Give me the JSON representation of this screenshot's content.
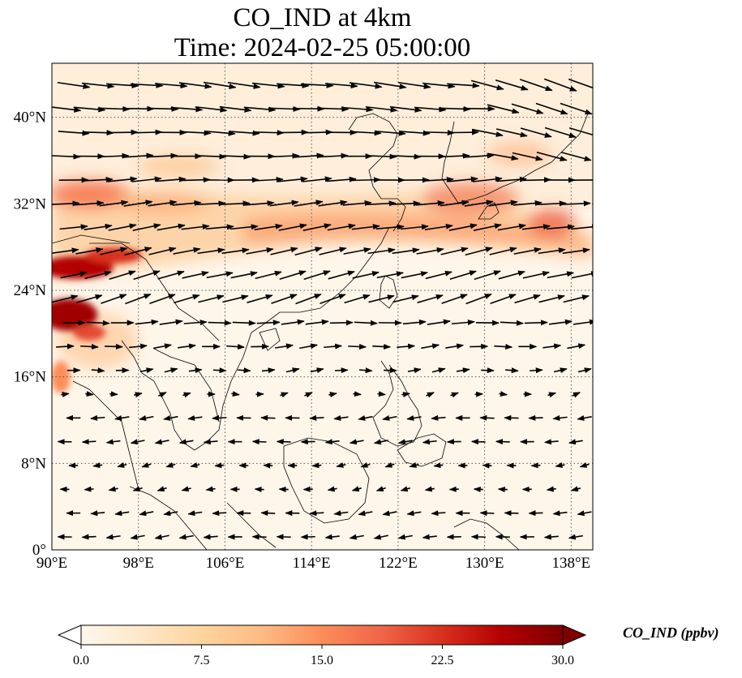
{
  "title": {
    "line1": "CO_IND at 4km",
    "line2": "Time: 2024-02-25 05:00:00"
  },
  "map": {
    "variable": "CO_IND",
    "level": "4km",
    "projection": "PlateCarree",
    "extent": {
      "lon_min": 90,
      "lon_max": 140,
      "lat_min": 0,
      "lat_max": 45
    },
    "gridlines": true,
    "lon_ticks": [
      {
        "value": 90,
        "label": "90°E"
      },
      {
        "value": 98,
        "label": "98°E"
      },
      {
        "value": 106,
        "label": "106°E"
      },
      {
        "value": 114,
        "label": "114°E"
      },
      {
        "value": 122,
        "label": "122°E"
      },
      {
        "value": 130,
        "label": "130°E"
      },
      {
        "value": 138,
        "label": "138°E"
      }
    ],
    "lat_ticks": [
      {
        "value": 0,
        "label": "0°"
      },
      {
        "value": 8,
        "label": "8°N"
      },
      {
        "value": 16,
        "label": "16°N"
      },
      {
        "value": 24,
        "label": "24°N"
      },
      {
        "value": 32,
        "label": "32°N"
      },
      {
        "value": 40,
        "label": "40°N"
      }
    ]
  },
  "colorbar": {
    "label": "CO_IND (ppbv)",
    "min": 0.0,
    "max": 30.0,
    "extend": "both",
    "colormap": "OrRd",
    "colors": [
      "#fff7ec",
      "#fee8c8",
      "#fdd49e",
      "#fdbb84",
      "#fc8d59",
      "#ef6548",
      "#d7301f",
      "#b30000",
      "#7f0000"
    ],
    "ticks": [
      {
        "value": 0.0,
        "label": "0.0"
      },
      {
        "value": 7.5,
        "label": "7.5"
      },
      {
        "value": 15.0,
        "label": "15.0"
      },
      {
        "value": 22.5,
        "label": "22.5"
      },
      {
        "value": 30.0,
        "label": "30.0"
      }
    ]
  }
}
